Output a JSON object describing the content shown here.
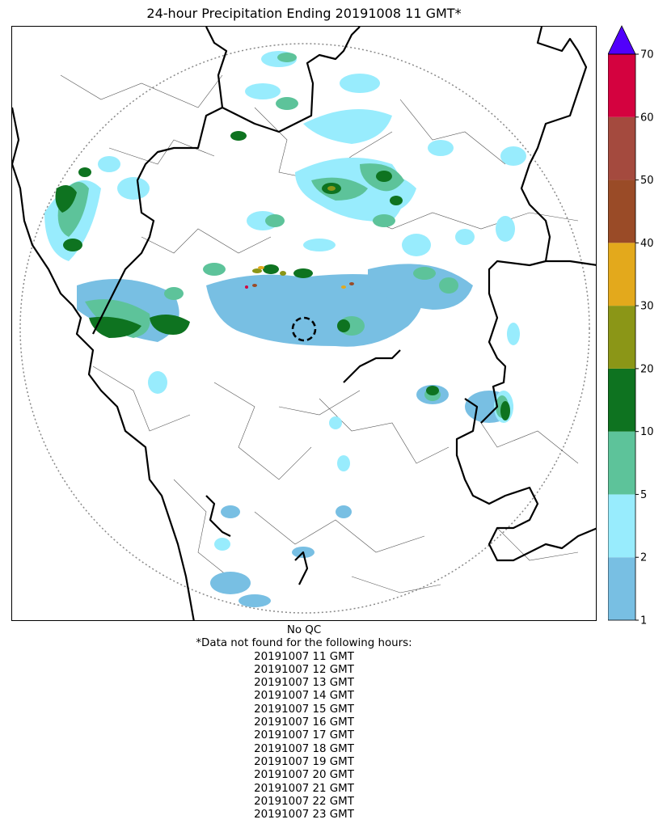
{
  "title": "24-hour Precipitation Ending 20191008 11 GMT*",
  "colorbar": {
    "ticks": [
      "1",
      "2",
      "5",
      "10",
      "20",
      "30",
      "40",
      "50",
      "60",
      "70"
    ],
    "colors": [
      "#78bfe3",
      "#98ecfd",
      "#5dc39a",
      "#0e7320",
      "#8b9617",
      "#e3a91c",
      "#9a4b27",
      "#a44a3e",
      "#d4023f"
    ],
    "extend_color": "#5100fb"
  },
  "notes": {
    "qc": "No QC",
    "missing_header": "*Data not found for the following hours:",
    "missing_hours": [
      "20191007 11 GMT",
      "20191007 12 GMT",
      "20191007 13 GMT",
      "20191007 14 GMT",
      "20191007 15 GMT",
      "20191007 16 GMT",
      "20191007 17 GMT",
      "20191007 18 GMT",
      "20191007 19 GMT",
      "20191007 20 GMT",
      "20191007 21 GMT",
      "20191007 22 GMT",
      "20191007 23 GMT"
    ]
  }
}
